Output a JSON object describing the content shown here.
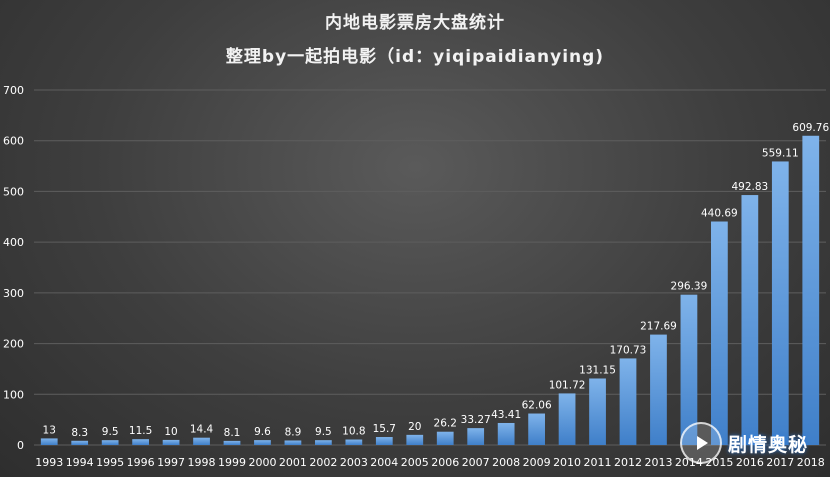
{
  "chart_data": {
    "type": "bar",
    "title": "内地电影票房大盘统计",
    "subtitle": "整理by一起拍电影（id：yiqipaidianying)",
    "categories": [
      "1993",
      "1994",
      "1995",
      "1996",
      "1997",
      "1998",
      "1999",
      "2000",
      "2001",
      "2002",
      "2003",
      "2004",
      "2005",
      "2006",
      "2007",
      "2008",
      "2009",
      "2010",
      "2011",
      "2012",
      "2013",
      "2014",
      "2015",
      "2016",
      "2017",
      "2018"
    ],
    "values": [
      13,
      8.3,
      9.5,
      11.5,
      10,
      14.4,
      8.1,
      9.6,
      8.9,
      9.5,
      10.8,
      15.7,
      20,
      26.2,
      33.27,
      43.41,
      62.06,
      101.72,
      131.15,
      170.73,
      217.69,
      296.39,
      440.69,
      492.83,
      559.11,
      609.76
    ],
    "value_labels": [
      "13",
      "8.3",
      "9.5",
      "11.5",
      "10",
      "14.4",
      "8.1",
      "9.6",
      "8.9",
      "9.5",
      "10.8",
      "15.7",
      "20",
      "26.2",
      "33.27",
      "43.41",
      "62.06",
      "101.72",
      "131.15",
      "170.73",
      "217.69",
      "296.39",
      "440.69",
      "492.83",
      "559.11",
      "609.76"
    ],
    "yticks": [
      "0",
      "100",
      "200",
      "300",
      "400",
      "500",
      "600",
      "700"
    ],
    "ylim": [
      0,
      700
    ],
    "xlabel": "",
    "ylabel": "",
    "grid": true,
    "legend": "none",
    "colors": {
      "bar_top": "#7fb3ea",
      "bar_bottom": "#3f7fc9",
      "grid": "#5e5e5e",
      "axis_text": "#ffffff",
      "label_text": "#ffffff"
    }
  },
  "watermark": {
    "text": "剧情奥秘",
    "icon": "play-logo-icon"
  }
}
